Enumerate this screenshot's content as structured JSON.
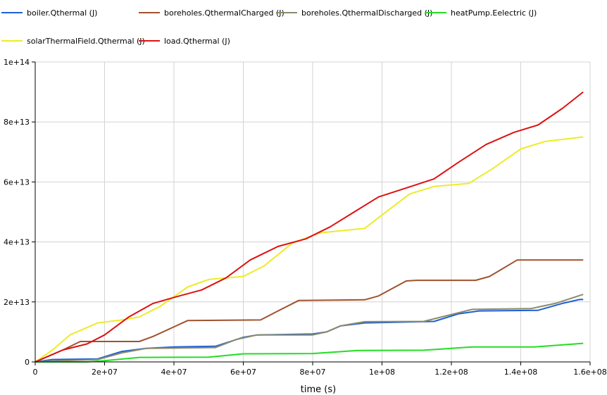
{
  "chart_data": {
    "type": "line",
    "xlabel": "time (s)",
    "ylabel": "",
    "xlim": [
      0,
      160000000
    ],
    "ylim": [
      0,
      100000000000000
    ],
    "x_ticks": [
      0,
      20000000,
      40000000,
      60000000,
      80000000,
      100000000,
      120000000,
      140000000,
      160000000
    ],
    "x_tick_labels": [
      "0",
      "2e+07",
      "4e+07",
      "6e+07",
      "8e+07",
      "1e+08",
      "1.2e+08",
      "1.4e+08",
      "1.6e+08"
    ],
    "y_ticks": [
      0,
      20000000000000,
      40000000000000,
      60000000000000,
      80000000000000,
      100000000000000
    ],
    "y_tick_labels": [
      "0",
      "2e+13",
      "4e+13",
      "6e+13",
      "8e+13",
      "1e+14"
    ],
    "grid": true,
    "legend_position": "top",
    "series": [
      {
        "name": "boiler.Qthermal (J)",
        "color": "#1f5fd6",
        "points": [
          [
            0,
            0
          ],
          [
            5000000,
            800000000000
          ],
          [
            18000000,
            1000000000000
          ],
          [
            25000000,
            3500000000000
          ],
          [
            32000000,
            4500000000000
          ],
          [
            40000000,
            5000000000000
          ],
          [
            52000000,
            5200000000000
          ],
          [
            60000000,
            8200000000000
          ],
          [
            64000000,
            9000000000000
          ],
          [
            80000000,
            9300000000000
          ],
          [
            84000000,
            10000000000000
          ],
          [
            88000000,
            12000000000000
          ],
          [
            95000000,
            13000000000000
          ],
          [
            108000000,
            13300000000000
          ],
          [
            115000000,
            13500000000000
          ],
          [
            122000000,
            16000000000000
          ],
          [
            128000000,
            17000000000000
          ],
          [
            145000000,
            17200000000000
          ],
          [
            152000000,
            19500000000000
          ],
          [
            157000000,
            20800000000000
          ],
          [
            158000000,
            20800000000000
          ]
        ]
      },
      {
        "name": "boreholes.QthermalCharged (J)",
        "color": "#a0522d",
        "points": [
          [
            0,
            0
          ],
          [
            8000000,
            4000000000000
          ],
          [
            13000000,
            6800000000000
          ],
          [
            30000000,
            6800000000000
          ],
          [
            34000000,
            8500000000000
          ],
          [
            44000000,
            13800000000000
          ],
          [
            65000000,
            14000000000000
          ],
          [
            70000000,
            17000000000000
          ],
          [
            76000000,
            20500000000000
          ],
          [
            95000000,
            20700000000000
          ],
          [
            99000000,
            22000000000000
          ],
          [
            107000000,
            27000000000000
          ],
          [
            110000000,
            27200000000000
          ],
          [
            127000000,
            27200000000000
          ],
          [
            131000000,
            28500000000000
          ],
          [
            139000000,
            34000000000000
          ],
          [
            158000000,
            34000000000000
          ]
        ]
      },
      {
        "name": "boreholes.QthermalDischarged (J)",
        "color": "#8b8b6b",
        "points": [
          [
            0,
            0
          ],
          [
            5000000,
            300000000000
          ],
          [
            18000000,
            800000000000
          ],
          [
            25000000,
            3000000000000
          ],
          [
            32000000,
            4500000000000
          ],
          [
            40000000,
            4600000000000
          ],
          [
            52000000,
            4800000000000
          ],
          [
            58000000,
            7500000000000
          ],
          [
            64000000,
            9000000000000
          ],
          [
            80000000,
            9000000000000
          ],
          [
            84000000,
            10000000000000
          ],
          [
            88000000,
            12000000000000
          ],
          [
            95000000,
            13400000000000
          ],
          [
            112000000,
            13500000000000
          ],
          [
            120000000,
            15800000000000
          ],
          [
            126000000,
            17500000000000
          ],
          [
            143000000,
            17800000000000
          ],
          [
            150000000,
            19500000000000
          ],
          [
            158000000,
            22500000000000
          ]
        ]
      },
      {
        "name": "heatPump.Eelectric (J)",
        "color": "#22dd22",
        "points": [
          [
            0,
            0
          ],
          [
            15000000,
            0
          ],
          [
            20000000,
            400000000000
          ],
          [
            30000000,
            1500000000000
          ],
          [
            50000000,
            1600000000000
          ],
          [
            60000000,
            2700000000000
          ],
          [
            80000000,
            2800000000000
          ],
          [
            93000000,
            3800000000000
          ],
          [
            112000000,
            3900000000000
          ],
          [
            120000000,
            4500000000000
          ],
          [
            126000000,
            5000000000000
          ],
          [
            144000000,
            5000000000000
          ],
          [
            158000000,
            6200000000000
          ]
        ]
      },
      {
        "name": "solarThermalField.Qthermal (J)",
        "color": "#ecec28",
        "points": [
          [
            0,
            0
          ],
          [
            5000000,
            4000000000000
          ],
          [
            10000000,
            9000000000000
          ],
          [
            18000000,
            13000000000000
          ],
          [
            25000000,
            14000000000000
          ],
          [
            30000000,
            15000000000000
          ],
          [
            36000000,
            18500000000000
          ],
          [
            44000000,
            25000000000000
          ],
          [
            50000000,
            27500000000000
          ],
          [
            60000000,
            28500000000000
          ],
          [
            66000000,
            32000000000000
          ],
          [
            74000000,
            39500000000000
          ],
          [
            82000000,
            43000000000000
          ],
          [
            95000000,
            44500000000000
          ],
          [
            100000000,
            49000000000000
          ],
          [
            108000000,
            56000000000000
          ],
          [
            115000000,
            58500000000000
          ],
          [
            125000000,
            59500000000000
          ],
          [
            132000000,
            64500000000000
          ],
          [
            140000000,
            71000000000000
          ],
          [
            147000000,
            73500000000000
          ],
          [
            158000000,
            75000000000000
          ]
        ]
      },
      {
        "name": "load.Qthermal (J)",
        "color": "#dd1111",
        "points": [
          [
            0,
            0
          ],
          [
            8000000,
            4000000000000
          ],
          [
            15000000,
            6000000000000
          ],
          [
            20000000,
            9000000000000
          ],
          [
            27000000,
            15000000000000
          ],
          [
            34000000,
            19500000000000
          ],
          [
            40000000,
            21500000000000
          ],
          [
            48000000,
            24000000000000
          ],
          [
            55000000,
            28000000000000
          ],
          [
            62000000,
            34000000000000
          ],
          [
            70000000,
            38500000000000
          ],
          [
            78000000,
            41000000000000
          ],
          [
            85000000,
            45000000000000
          ],
          [
            92000000,
            50000000000000
          ],
          [
            99000000,
            55000000000000
          ],
          [
            107000000,
            58000000000000
          ],
          [
            115000000,
            61000000000000
          ],
          [
            122000000,
            66500000000000
          ],
          [
            130000000,
            72500000000000
          ],
          [
            138000000,
            76500000000000
          ],
          [
            145000000,
            79000000000000
          ],
          [
            152000000,
            84500000000000
          ],
          [
            158000000,
            90000000000000
          ]
        ]
      }
    ]
  }
}
